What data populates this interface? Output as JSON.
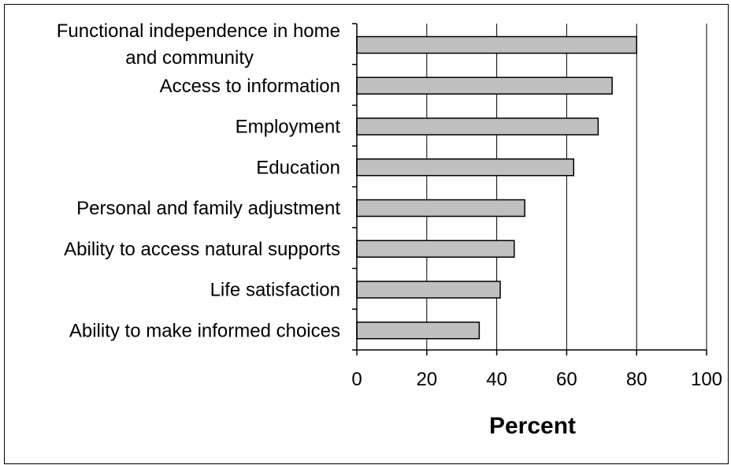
{
  "chart_data": {
    "type": "bar",
    "orientation": "horizontal",
    "categories": [
      [
        "Functional independence in home",
        "and community"
      ],
      [
        "Access to information"
      ],
      [
        "Employment"
      ],
      [
        "Education"
      ],
      [
        "Personal and family adjustment"
      ],
      [
        "Ability to access natural supports"
      ],
      [
        "Life satisfaction"
      ],
      [
        "Ability to make informed choices"
      ]
    ],
    "values": [
      80,
      73,
      69,
      62,
      48,
      45,
      41,
      35
    ],
    "xlim": [
      0,
      100
    ],
    "xticks": [
      0,
      20,
      40,
      60,
      80,
      100
    ],
    "xlabel": "Percent",
    "grid": "vertical",
    "bar_color": "#c0c0c0",
    "bar_edge_color": "#000000"
  }
}
